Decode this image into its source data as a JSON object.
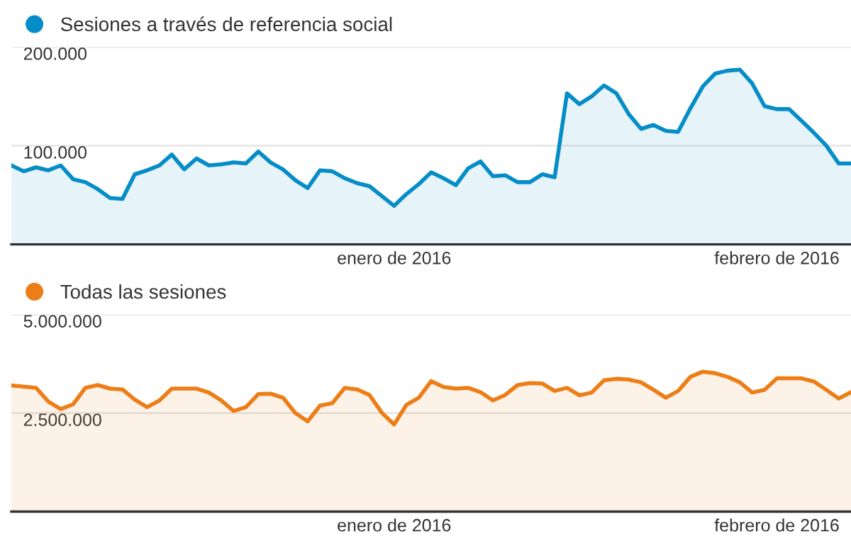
{
  "chart_data": [
    {
      "type": "area",
      "legend": "top left",
      "grid": "y",
      "marker": "none",
      "line_style": "solid",
      "categories": [
        null,
        null,
        null,
        null,
        null,
        null,
        null,
        null,
        null,
        null,
        null,
        null,
        null,
        null,
        null,
        null,
        null,
        null,
        null,
        null,
        null,
        null,
        null,
        null,
        null,
        null,
        null,
        null,
        null,
        null,
        null,
        "enero de 2016",
        null,
        null,
        null,
        null,
        null,
        null,
        null,
        null,
        null,
        null,
        null,
        null,
        null,
        null,
        null,
        null,
        null,
        null,
        null,
        null,
        null,
        null,
        null,
        null,
        null,
        null,
        null,
        null,
        null,
        null,
        "febrero de 2016",
        null,
        null,
        null,
        null,
        null,
        null
      ],
      "series": [
        {
          "name": "Sesiones a través de referencia social",
          "color": "#058dc7",
          "values": [
            80000,
            74000,
            78000,
            75000,
            80000,
            66000,
            63000,
            56000,
            47000,
            46000,
            71000,
            75000,
            80000,
            91000,
            76000,
            87000,
            80000,
            81000,
            83000,
            82000,
            94000,
            83000,
            76000,
            65000,
            57000,
            75000,
            74000,
            67000,
            62000,
            59000,
            49000,
            39000,
            51000,
            61000,
            73000,
            67000,
            60000,
            77000,
            84000,
            69000,
            70000,
            63000,
            63000,
            71000,
            68000,
            153000,
            142000,
            150000,
            161000,
            153000,
            132000,
            117000,
            121000,
            115000,
            114000,
            138000,
            160000,
            173000,
            176000,
            177000,
            163000,
            140000,
            137000,
            137000,
            125000,
            113000,
            100000,
            82000,
            82000
          ]
        }
      ],
      "ylim": [
        0,
        200000
      ],
      "yticks": [
        {
          "value": 100000,
          "label": "100.000"
        },
        {
          "value": 200000,
          "label": "200.000"
        }
      ]
    },
    {
      "type": "area",
      "legend": "top left",
      "grid": "y",
      "marker": "none",
      "line_style": "solid",
      "categories": [
        null,
        null,
        null,
        null,
        null,
        null,
        null,
        null,
        null,
        null,
        null,
        null,
        null,
        null,
        null,
        null,
        null,
        null,
        null,
        null,
        null,
        null,
        null,
        null,
        null,
        null,
        null,
        null,
        null,
        null,
        null,
        "enero de 2016",
        null,
        null,
        null,
        null,
        null,
        null,
        null,
        null,
        null,
        null,
        null,
        null,
        null,
        null,
        null,
        null,
        null,
        null,
        null,
        null,
        null,
        null,
        null,
        null,
        null,
        null,
        null,
        null,
        null,
        null,
        "febrero de 2016",
        null,
        null,
        null,
        null,
        null,
        null
      ],
      "series": [
        {
          "name": "Todas las sesiones",
          "color": "#ed7e17",
          "values": [
            3200000,
            3170000,
            3140000,
            2790000,
            2600000,
            2720000,
            3140000,
            3210000,
            3120000,
            3100000,
            2840000,
            2650000,
            2820000,
            3120000,
            3120000,
            3120000,
            3020000,
            2820000,
            2550000,
            2650000,
            2980000,
            2990000,
            2890000,
            2500000,
            2290000,
            2690000,
            2750000,
            3140000,
            3100000,
            2960000,
            2510000,
            2210000,
            2710000,
            2890000,
            3310000,
            3160000,
            3120000,
            3140000,
            3030000,
            2820000,
            2960000,
            3210000,
            3260000,
            3250000,
            3060000,
            3140000,
            2950000,
            3020000,
            3330000,
            3370000,
            3350000,
            3280000,
            3090000,
            2890000,
            3060000,
            3420000,
            3550000,
            3510000,
            3420000,
            3280000,
            3020000,
            3090000,
            3380000,
            3380000,
            3380000,
            3300000,
            3090000,
            2870000,
            3030000
          ]
        }
      ],
      "ylim": [
        0,
        5000000
      ],
      "yticks": [
        {
          "value": 2500000,
          "label": "2.500.000"
        },
        {
          "value": 5000000,
          "label": "5.000.000"
        }
      ]
    }
  ]
}
